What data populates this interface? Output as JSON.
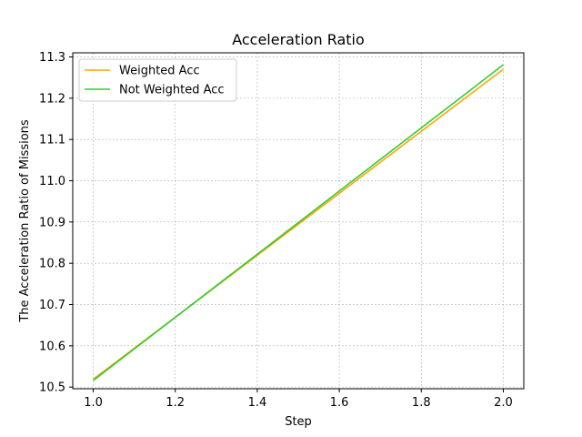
{
  "chart_data": {
    "type": "line",
    "title": "Acceleration Ratio",
    "xlabel": "Step",
    "ylabel": "The Acceleration Ratio of Missions",
    "xlim": [
      0.95,
      2.05
    ],
    "ylim": [
      10.496,
      11.31
    ],
    "xticks": [
      1.0,
      1.2,
      1.4,
      1.6,
      1.8,
      2.0
    ],
    "xtick_labels": [
      "1.0",
      "1.2",
      "1.4",
      "1.6",
      "1.8",
      "2.0"
    ],
    "yticks": [
      10.5,
      10.6,
      10.7,
      10.8,
      10.9,
      11.0,
      11.1,
      11.2,
      11.3
    ],
    "ytick_labels": [
      "10.5",
      "10.6",
      "10.7",
      "10.8",
      "10.9",
      "11.0",
      "11.1",
      "11.2",
      "11.3"
    ],
    "grid": true,
    "legend_position": "upper-left",
    "series": [
      {
        "name": "Weighted Acc",
        "color": "#ffa500",
        "x": [
          1.0,
          2.0
        ],
        "y": [
          10.519,
          11.27
        ]
      },
      {
        "name": "Not Weighted Acc",
        "color": "#32cd32",
        "x": [
          1.0,
          2.0
        ],
        "y": [
          10.516,
          11.281
        ]
      }
    ]
  }
}
